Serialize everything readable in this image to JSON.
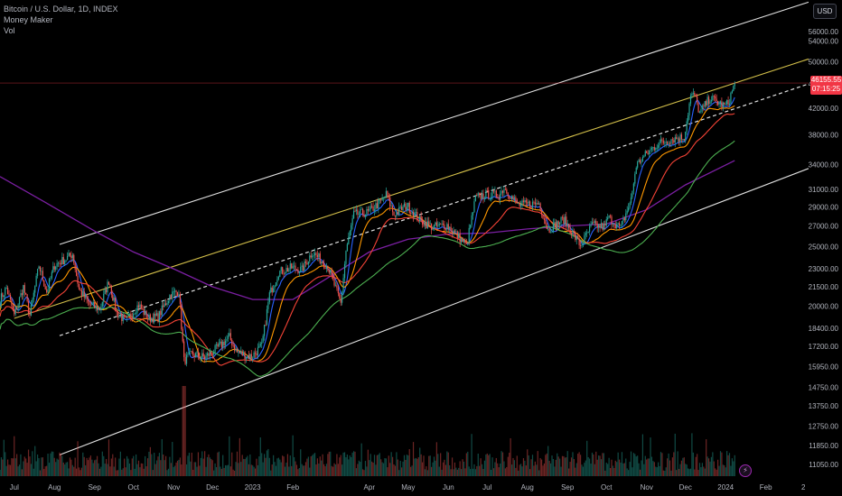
{
  "header": {
    "symbol_line": "Bitcoin / U.S. Dollar, 1D, INDEX",
    "indicator_1": "Money Maker",
    "indicator_2": "Vol"
  },
  "currency_button": "USD",
  "last_price": {
    "value": "46155.55",
    "countdown": "07:15:25"
  },
  "flash_icon": "⚡",
  "colors": {
    "background": "#000000",
    "up": "#26a69a",
    "down": "#ef5350",
    "ma_blue": "#2962ff",
    "ma_orange": "#ff9800",
    "ma_red": "#f44336",
    "ma_green": "#4caf50",
    "ma_purple": "#7b1fa2",
    "channel": "#e0e0e0",
    "yellow_line": "#d4c04a",
    "price_tag": "#f23645"
  },
  "chart_data": {
    "type": "candlestick",
    "y_scale": "log",
    "ylim": [
      10500,
      63000
    ],
    "xlim": [
      "2022-06-20",
      "2024-03-05"
    ],
    "y_ticks": [
      "56000.00",
      "54000.00",
      "50000.00",
      "46000.00",
      "42000.00",
      "38000.00",
      "34000.00",
      "31000.00",
      "29000.00",
      "27000.00",
      "25000.00",
      "23000.00",
      "21500.00",
      "20000.00",
      "18400.00",
      "17200.00",
      "15950.00",
      "14750.00",
      "13750.00",
      "12750.00",
      "11850.00",
      "11050.00"
    ],
    "x_ticks": [
      {
        "label": "Jul",
        "date": "2022-07-01"
      },
      {
        "label": "Aug",
        "date": "2022-08-01"
      },
      {
        "label": "Sep",
        "date": "2022-09-01"
      },
      {
        "label": "Oct",
        "date": "2022-10-01"
      },
      {
        "label": "Nov",
        "date": "2022-11-01"
      },
      {
        "label": "Dec",
        "date": "2022-12-01"
      },
      {
        "label": "2023",
        "date": "2023-01-01"
      },
      {
        "label": "Feb",
        "date": "2023-02-01"
      },
      {
        "label": "Apr",
        "date": "2023-04-01"
      },
      {
        "label": "May",
        "date": "2023-05-01"
      },
      {
        "label": "Jun",
        "date": "2023-06-01"
      },
      {
        "label": "Jul",
        "date": "2023-07-01"
      },
      {
        "label": "Aug",
        "date": "2023-08-01"
      },
      {
        "label": "Sep",
        "date": "2023-09-01"
      },
      {
        "label": "Oct",
        "date": "2023-10-01"
      },
      {
        "label": "Nov",
        "date": "2023-11-01"
      },
      {
        "label": "Dec",
        "date": "2023-12-01"
      },
      {
        "label": "2024",
        "date": "2024-01-01"
      },
      {
        "label": "Feb",
        "date": "2024-02-01"
      },
      {
        "label": "2",
        "date": "2024-03-01"
      }
    ],
    "price_path": [
      [
        "2022-06-20",
        20500
      ],
      [
        "2022-06-25",
        21400
      ],
      [
        "2022-07-01",
        19300
      ],
      [
        "2022-07-08",
        21500
      ],
      [
        "2022-07-13",
        19300
      ],
      [
        "2022-07-20",
        23300
      ],
      [
        "2022-07-26",
        21100
      ],
      [
        "2022-08-01",
        23300
      ],
      [
        "2022-08-10",
        23900
      ],
      [
        "2022-08-15",
        24300
      ],
      [
        "2022-08-20",
        21300
      ],
      [
        "2022-08-28",
        20100
      ],
      [
        "2022-09-05",
        19800
      ],
      [
        "2022-09-12",
        22000
      ],
      [
        "2022-09-18",
        19500
      ],
      [
        "2022-09-25",
        18900
      ],
      [
        "2022-10-05",
        20100
      ],
      [
        "2022-10-12",
        19100
      ],
      [
        "2022-10-20",
        19200
      ],
      [
        "2022-10-29",
        20800
      ],
      [
        "2022-11-05",
        21200
      ],
      [
        "2022-11-09",
        16300
      ],
      [
        "2022-11-15",
        16700
      ],
      [
        "2022-11-25",
        16500
      ],
      [
        "2022-12-05",
        17100
      ],
      [
        "2022-12-14",
        17800
      ],
      [
        "2022-12-20",
        16800
      ],
      [
        "2022-12-31",
        16550
      ],
      [
        "2023-01-08",
        17200
      ],
      [
        "2023-01-14",
        20900
      ],
      [
        "2023-01-21",
        22700
      ],
      [
        "2023-01-31",
        23100
      ],
      [
        "2023-02-08",
        22900
      ],
      [
        "2023-02-16",
        24500
      ],
      [
        "2023-02-28",
        23200
      ],
      [
        "2023-03-10",
        20200
      ],
      [
        "2023-03-14",
        24600
      ],
      [
        "2023-03-20",
        28200
      ],
      [
        "2023-03-31",
        28400
      ],
      [
        "2023-04-10",
        29600
      ],
      [
        "2023-04-14",
        30400
      ],
      [
        "2023-04-20",
        28200
      ],
      [
        "2023-04-30",
        29200
      ],
      [
        "2023-05-10",
        27600
      ],
      [
        "2023-05-20",
        26900
      ],
      [
        "2023-05-31",
        27100
      ],
      [
        "2023-06-10",
        25800
      ],
      [
        "2023-06-15",
        25100
      ],
      [
        "2023-06-22",
        30000
      ],
      [
        "2023-06-30",
        30400
      ],
      [
        "2023-07-10",
        30300
      ],
      [
        "2023-07-14",
        31200
      ],
      [
        "2023-07-25",
        29200
      ],
      [
        "2023-08-10",
        29400
      ],
      [
        "2023-08-17",
        26600
      ],
      [
        "2023-08-29",
        27700
      ],
      [
        "2023-09-11",
        25100
      ],
      [
        "2023-09-20",
        27100
      ],
      [
        "2023-09-30",
        26900
      ],
      [
        "2023-10-02",
        27900
      ],
      [
        "2023-10-12",
        26800
      ],
      [
        "2023-10-20",
        29800
      ],
      [
        "2023-10-24",
        33900
      ],
      [
        "2023-11-01",
        35400
      ],
      [
        "2023-11-09",
        36700
      ],
      [
        "2023-11-20",
        37400
      ],
      [
        "2023-11-30",
        37700
      ],
      [
        "2023-12-05",
        43900
      ],
      [
        "2023-12-08",
        44100
      ],
      [
        "2023-12-12",
        41200
      ],
      [
        "2023-12-20",
        43700
      ],
      [
        "2023-12-31",
        42300
      ],
      [
        "2024-01-03",
        42800
      ],
      [
        "2024-01-08",
        46155
      ]
    ],
    "ma_lines": [
      {
        "color_key": "ma_blue",
        "smooth": 7
      },
      {
        "color_key": "ma_orange",
        "smooth": 16
      },
      {
        "color_key": "ma_red",
        "smooth": 30
      },
      {
        "color_key": "ma_green",
        "smooth": 60
      },
      {
        "color_key": "ma_purple",
        "smooth": 120
      }
    ],
    "purple_ma_path": [
      [
        "2022-06-20",
        32500
      ],
      [
        "2022-07-25",
        29500
      ],
      [
        "2022-09-01",
        26500
      ],
      [
        "2022-10-01",
        24500
      ],
      [
        "2022-11-01",
        23000
      ],
      [
        "2022-12-01",
        21500
      ],
      [
        "2023-01-01",
        20500
      ],
      [
        "2023-02-01",
        20500
      ],
      [
        "2023-03-01",
        22300
      ],
      [
        "2023-04-01",
        24500
      ],
      [
        "2023-05-01",
        25700
      ],
      [
        "2023-06-01",
        26200
      ],
      [
        "2023-07-01",
        26300
      ],
      [
        "2023-08-01",
        26700
      ],
      [
        "2023-09-01",
        27000
      ],
      [
        "2023-10-01",
        27200
      ],
      [
        "2023-11-01",
        28700
      ],
      [
        "2023-12-01",
        31500
      ],
      [
        "2024-01-08",
        34500
      ]
    ],
    "trend_lines": [
      {
        "name_key": "channel_top",
        "color_key": "channel",
        "dash": false,
        "from": [
          "2022-08-05",
          25200
        ],
        "to": [
          "2024-03-05",
          62500
        ]
      },
      {
        "name_key": "yellow_mid",
        "color_key": "yellow_line",
        "dash": false,
        "from": [
          "2022-07-01",
          19100
        ],
        "to": [
          "2024-03-05",
          50500
        ]
      },
      {
        "name_key": "dashed_mid",
        "color_key": "channel",
        "dash": true,
        "from": [
          "2022-08-05",
          17900
        ],
        "to": [
          "2024-03-05",
          46000
        ]
      },
      {
        "name_key": "channel_bottom",
        "color_key": "channel",
        "dash": false,
        "from": [
          "2022-08-05",
          11450
        ],
        "to": [
          "2024-03-05",
          33500
        ]
      }
    ],
    "grid": false
  }
}
